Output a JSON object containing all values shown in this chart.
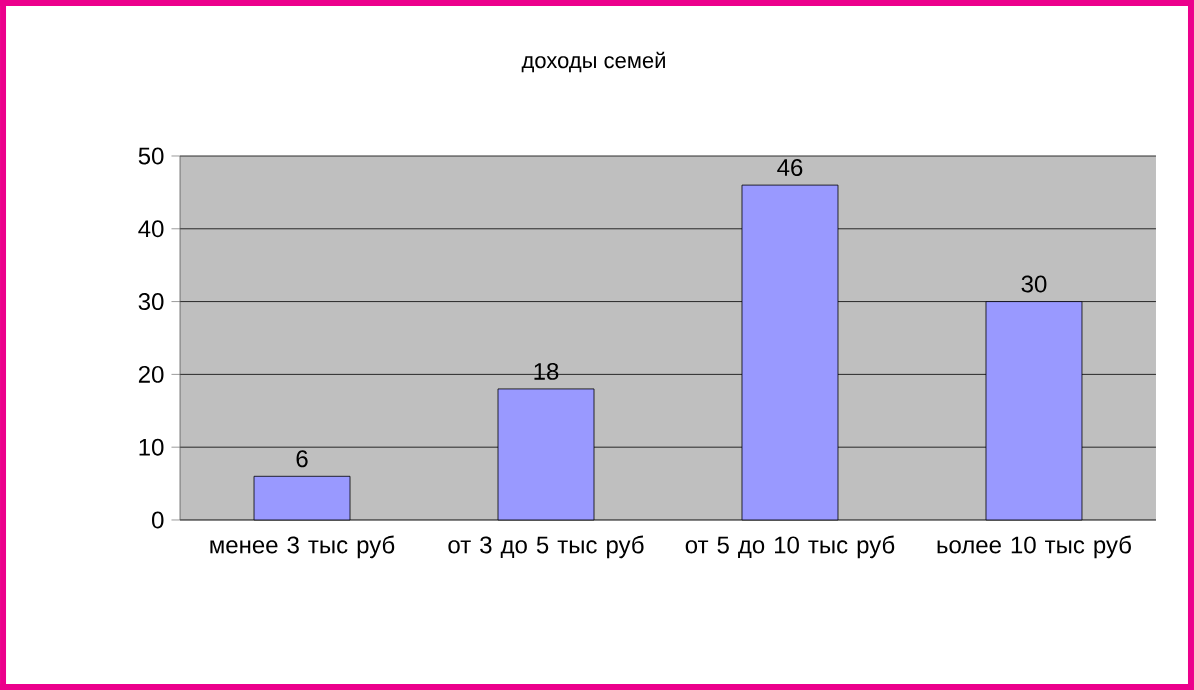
{
  "chart_data": {
    "type": "bar",
    "title": "доходы семей",
    "categories": [
      "менее 3 тыс руб",
      "от 3 до 5 тыс руб",
      "от 5 до 10 тыс руб",
      "ьолее 10 тыс руб"
    ],
    "values": [
      6,
      18,
      46,
      30
    ],
    "color": "#9999ff",
    "ylim": [
      0,
      50
    ],
    "yticks": [
      0,
      10,
      20,
      30,
      40,
      50
    ],
    "grid": "y",
    "data_labels": true
  }
}
